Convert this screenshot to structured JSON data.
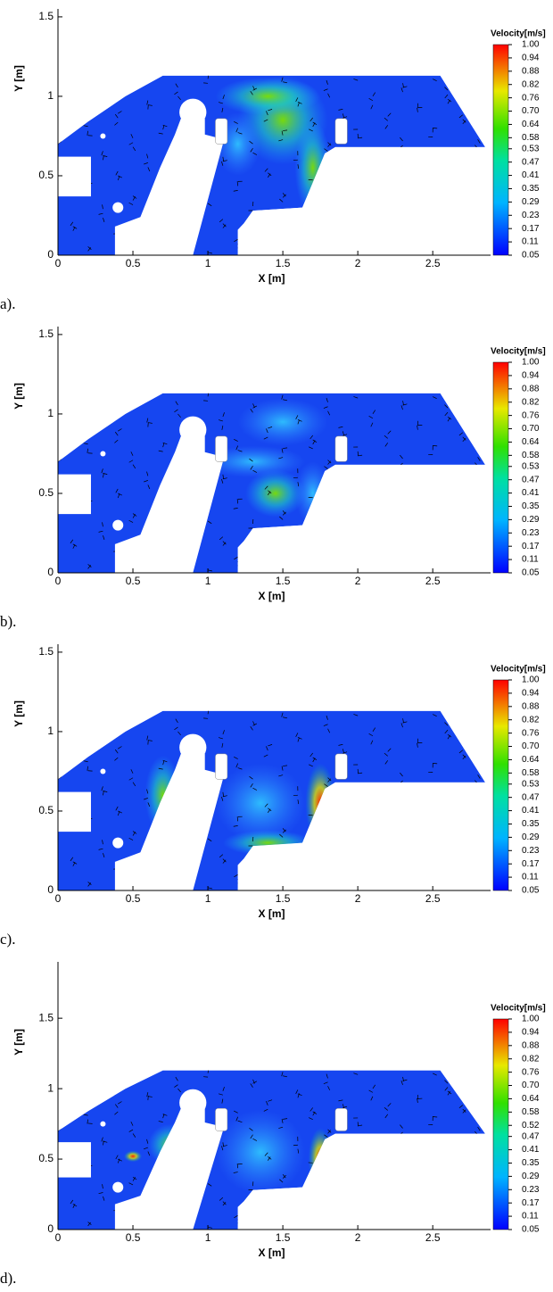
{
  "chart_data": [
    {
      "type": "contour",
      "caption": "a).",
      "x_label": "X [m]",
      "y_label": "Y [m]",
      "xlim": [
        0,
        2.85
      ],
      "ylim": [
        0,
        1.55
      ],
      "xticks": [
        0,
        0.5,
        1,
        1.5,
        2,
        2.5
      ],
      "yticks": [
        0,
        0.5,
        1,
        1.5
      ],
      "colorbar": {
        "title": "Velocity[m/s]",
        "clim": [
          0.05,
          1
        ],
        "ticks": [
          {
            "value": 1,
            "label": "1.00"
          },
          0.94,
          0.88,
          0.82,
          0.76,
          {
            "value": 0.7,
            "label": "0.70"
          },
          0.64,
          0.58,
          0.53,
          0.47,
          0.41,
          0.35,
          0.29,
          0.23,
          0.17,
          0.11,
          0.05
        ]
      }
    },
    {
      "type": "contour",
      "caption": "b).",
      "x_label": "X [m]",
      "y_label": "Y [m]",
      "xlim": [
        0,
        2.85
      ],
      "ylim": [
        0,
        1.55
      ],
      "xticks": [
        0,
        0.5,
        1,
        1.5,
        2,
        2.5
      ],
      "yticks": [
        0,
        0.5,
        1,
        1.5
      ],
      "colorbar": {
        "title": "Velocity[m/s]",
        "clim": [
          0.05,
          1
        ],
        "ticks": [
          {
            "value": 1,
            "label": "1.00"
          },
          0.94,
          0.88,
          0.82,
          0.76,
          {
            "value": 0.7,
            "label": "0.70"
          },
          0.64,
          0.58,
          0.53,
          0.47,
          0.41,
          0.35,
          0.29,
          0.23,
          0.17,
          0.11,
          0.05
        ]
      }
    },
    {
      "type": "contour",
      "caption": "c).",
      "x_label": "X [m]",
      "y_label": "Y [m]",
      "xlim": [
        0,
        2.85
      ],
      "ylim": [
        0,
        1.55
      ],
      "xticks": [
        0,
        0.5,
        1,
        1.5,
        2,
        2.5
      ],
      "yticks": [
        0,
        0.5,
        1,
        1.5
      ],
      "colorbar": {
        "title": "Velocity[m/s]",
        "clim": [
          0.05,
          1
        ],
        "ticks": [
          {
            "value": 1,
            "label": "1.00"
          },
          0.94,
          0.88,
          0.82,
          0.76,
          {
            "value": 0.7,
            "label": "0.70"
          },
          0.64,
          0.58,
          0.53,
          0.47,
          0.41,
          0.35,
          0.29,
          0.23,
          0.17,
          0.11,
          0.05
        ]
      }
    },
    {
      "type": "contour",
      "caption": "d).",
      "x_label": "X [m]",
      "y_label": "Y [m]",
      "xlim": [
        0,
        2.85
      ],
      "ylim": [
        0,
        1.9
      ],
      "xticks": [
        0,
        0.5,
        1,
        1.5,
        2,
        2.5
      ],
      "yticks": [
        0,
        0.5,
        1,
        1.5
      ],
      "colorbar": {
        "title": "Velocity[m/s]",
        "clim": [
          0.05,
          1
        ],
        "ticks": [
          {
            "value": 1,
            "label": "1.00"
          },
          0.94,
          0.88,
          0.82,
          0.76,
          {
            "value": 0.7,
            "label": "0.70"
          },
          0.64,
          0.58,
          0.52,
          0.47,
          0.41,
          0.35,
          0.29,
          0.23,
          0.17,
          0.11,
          0.05
        ]
      }
    }
  ]
}
